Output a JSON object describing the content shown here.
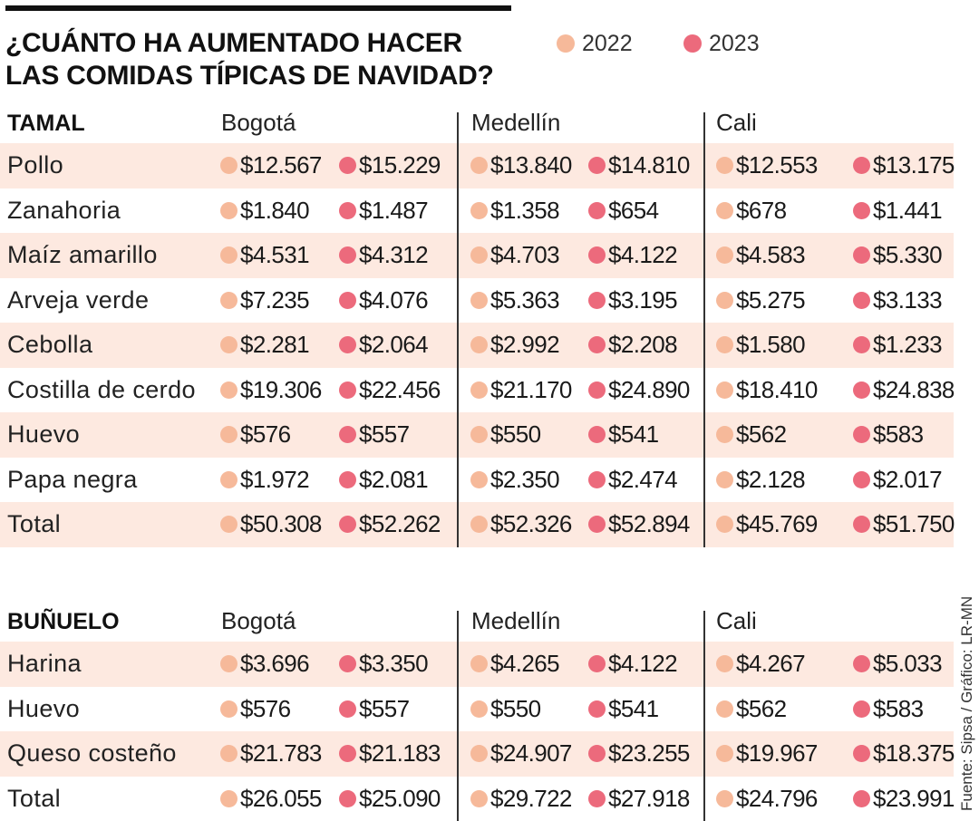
{
  "title_lines": [
    "¿CUÁNTO HA AUMENTADO HACER",
    "LAS COMIDAS TÍPICAS DE NAVIDAD?"
  ],
  "legend": [
    {
      "label": "2022",
      "color": "#f6b99a"
    },
    {
      "label": "2023",
      "color": "#ec6a7c"
    }
  ],
  "colors": {
    "y2022": "#f6b99a",
    "y2023": "#ec6a7c",
    "shade": "#fde9e0"
  },
  "cities": [
    "Bogotá",
    "Medellín",
    "Cali"
  ],
  "tamal": {
    "title": "TAMAL",
    "rows": [
      {
        "label": "Pollo",
        "values": [
          "$12.567",
          "$15.229",
          "$13.840",
          "$14.810",
          "$12.553",
          "$13.175"
        ]
      },
      {
        "label": "Zanahoria",
        "values": [
          "$1.840",
          "$1.487",
          "$1.358",
          "$654",
          "$678",
          "$1.441"
        ]
      },
      {
        "label": "Maíz amarillo",
        "values": [
          "$4.531",
          "$4.312",
          "$4.703",
          "$4.122",
          "$4.583",
          "$5.330"
        ]
      },
      {
        "label": "Arveja verde",
        "values": [
          "$7.235",
          "$4.076",
          "$5.363",
          "$3.195",
          "$5.275",
          "$3.133"
        ]
      },
      {
        "label": "Cebolla",
        "values": [
          "$2.281",
          "$2.064",
          "$2.992",
          "$2.208",
          "$1.580",
          "$1.233"
        ]
      },
      {
        "label": "Costilla de cerdo",
        "values": [
          "$19.306",
          "$22.456",
          "$21.170",
          "$24.890",
          "$18.410",
          "$24.838"
        ]
      },
      {
        "label": "Huevo",
        "values": [
          "$576",
          "$557",
          "$550",
          "$541",
          "$562",
          "$583"
        ]
      },
      {
        "label": "Papa negra",
        "values": [
          "$1.972",
          "$2.081",
          "$2.350",
          "$2.474",
          "$2.128",
          "$2.017"
        ]
      },
      {
        "label": "Total",
        "values": [
          "$50.308",
          "$52.262",
          "$52.326",
          "$52.894",
          "$45.769",
          "$51.750"
        ]
      }
    ]
  },
  "bunuelo": {
    "title": "BUÑUELO",
    "rows": [
      {
        "label": "Harina",
        "values": [
          "$3.696",
          "$3.350",
          "$4.265",
          "$4.122",
          "$4.267",
          "$5.033"
        ]
      },
      {
        "label": "Huevo",
        "values": [
          "$576",
          "$557",
          "$550",
          "$541",
          "$562",
          "$583"
        ]
      },
      {
        "label": "Queso costeño",
        "values": [
          "$21.783",
          "$21.183",
          "$24.907",
          "$23.255",
          "$19.967",
          "$18.375"
        ]
      },
      {
        "label": "Total",
        "values": [
          "$26.055",
          "$25.090",
          "$29.722",
          "$27.918",
          "$24.796",
          "$23.991"
        ]
      }
    ]
  },
  "source": "Fuente: Sipsa / Gráfico: LR-MN"
}
